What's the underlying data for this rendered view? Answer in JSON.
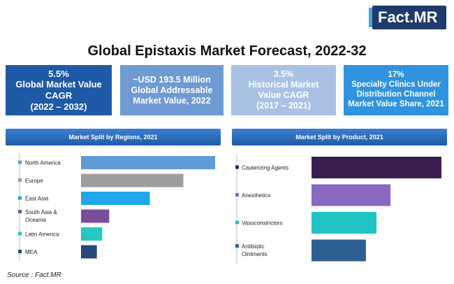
{
  "brand": {
    "logo_text": "Fact.MR"
  },
  "title": "Global Epistaxis Market Forecast, 2022-32",
  "kpis": [
    {
      "line1": "5.5%",
      "line2": "Global Market Value",
      "line3": "CAGR",
      "line4": "(2022 – 2032)",
      "color": "#1e5aa6"
    },
    {
      "line1": "~USD 193.5 Million",
      "line2": "Global Addressable",
      "line3": "Market Value, 2022",
      "color": "#6f9ad2"
    },
    {
      "line1": "3.5%",
      "line2": "Historical Market",
      "line3": "Value CAGR",
      "line4": "(2017 – 2021)",
      "color": "#a9c2e4"
    },
    {
      "line1": "17%",
      "line2": "Specialty Clinics Under",
      "line3": "Distribution Channel",
      "line4": "Market Value Share, 2021",
      "color": "#2f93e0"
    }
  ],
  "source": "Source : Fact.MR",
  "chart_data": [
    {
      "type": "bar",
      "orientation": "horizontal",
      "title": "Market Split by Regions, 2021",
      "categories": [
        "North America",
        "Europe",
        "East Asia",
        "South Asia & Oceania",
        "Latin America",
        "MEA"
      ],
      "label_lines": [
        [
          "North America"
        ],
        [
          "Europe"
        ],
        [
          "East Asia"
        ],
        [
          "South Asia &",
          "Oceania"
        ],
        [
          "Latin America"
        ],
        [
          "MEA"
        ]
      ],
      "values": [
        38,
        29,
        19.5,
        8,
        6,
        4.5
      ],
      "colors": [
        "#5f9bd5",
        "#9e9e9e",
        "#1fa7ea",
        "#7a4e9c",
        "#25c7c0",
        "#25497a"
      ],
      "legend": "left",
      "grid": false
    },
    {
      "type": "bar",
      "orientation": "horizontal",
      "title": "Market Split by Product, 2021",
      "categories": [
        "Cauterizing Agents",
        "Anesthetics",
        "Vasoconstrictors",
        "Antibiotic Ointments"
      ],
      "label_lines": [
        [
          "Cauterizing Agents"
        ],
        [
          "Anesthetics"
        ],
        [
          "Vasoconstrictors"
        ],
        [
          "Antibiotic",
          "Ointments"
        ]
      ],
      "values": [
        37,
        22.5,
        18.5,
        15.5
      ],
      "colors": [
        "#3a1f4e",
        "#8a68c0",
        "#21c4c4",
        "#2e5f94"
      ],
      "legend": "left",
      "grid": false
    }
  ]
}
